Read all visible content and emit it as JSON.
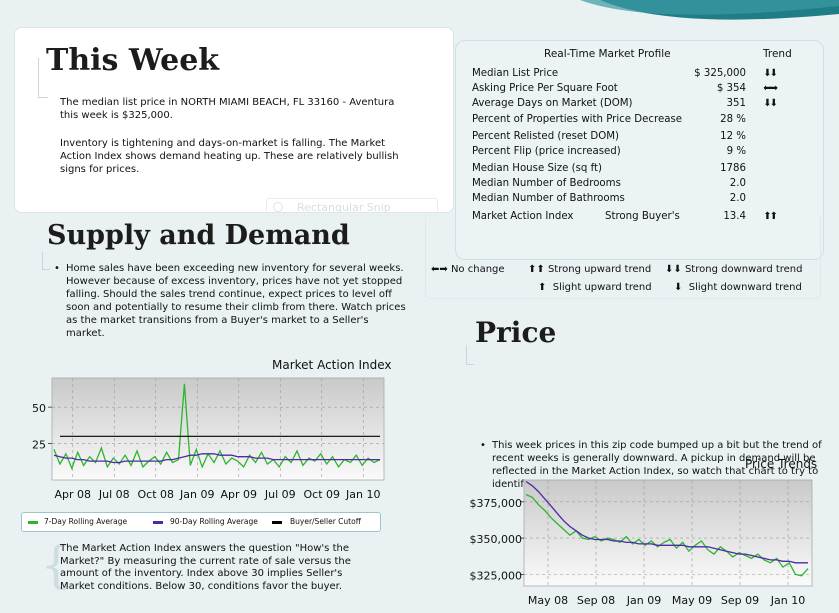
{
  "this_week": {
    "title": "This Week",
    "para1": "The median list price in NORTH MIAMI BEACH, FL 33160 - Aventura this week is $325,000.",
    "para2": "Inventory is tightening and days-on-market is falling. The Market Action Index shows demand heating up. These are relatively bullish signs for prices."
  },
  "snip_text": "Rectangular Snip",
  "supply": {
    "title": "Supply and Demand",
    "text": "Home sales have been exceeding new inventory for several weeks. However because of excess inventory, prices have not yet stopped falling. Should the sales trend continue, expect prices to level off soon and potentially to resume their climb from there. Watch prices as the market transitions from a Buyer's market to a Seller's market."
  },
  "profile": {
    "title": "Real-Time Market Profile",
    "trend_header": "Trend",
    "rows": [
      {
        "label": "Median List Price",
        "mid": "",
        "value": "$ 325,000",
        "trend": "⬇⬇"
      },
      {
        "label": "Asking Price Per Square Foot",
        "mid": "",
        "value": "$ 354",
        "trend": "⬅➡"
      },
      {
        "label": "Average Days on Market (DOM)",
        "mid": "",
        "value": "351",
        "trend": "⬇⬇"
      },
      {
        "label": "Percent of Properties with Price Decrease",
        "mid": "",
        "value": "28 %",
        "trend": ""
      },
      {
        "label": "Percent Relisted (reset DOM)",
        "mid": "",
        "value": "12 %",
        "trend": ""
      },
      {
        "label": "Percent Flip (price increased)",
        "mid": "",
        "value": "9 %",
        "trend": ""
      },
      {
        "label": "Median House Size (sq ft)",
        "mid": "",
        "value": "1786",
        "trend": ""
      },
      {
        "label": "Median Number of Bedrooms",
        "mid": "",
        "value": "2.0",
        "trend": ""
      },
      {
        "label": "Median Number of Bathrooms",
        "mid": "",
        "value": "2.0",
        "trend": ""
      },
      {
        "label": "Market Action Index",
        "mid": "Strong Buyer's",
        "value": "13.4",
        "trend": "⬆⬆"
      }
    ]
  },
  "trend_legend": {
    "no_change": "No change",
    "strong_up": "Strong upward trend",
    "strong_down": "Strong downward trend",
    "slight_up": "Slight upward trend",
    "slight_down": "Slight downward trend"
  },
  "price": {
    "title": "Price",
    "text": "This week prices in this zip code bumped up a bit but the trend of recent weeks is generally downward. A pickup in demand will be reflected in the Market Action Index, so watch that chart to try to identify a trough in the market."
  },
  "mai_note": "The Market Action Index answers the question \"How's the Market?\" By measuring the current rate of sale versus the amount of the inventory.  Index above 30 implies Seller's Market conditions. Below 30, conditions favor the buyer.",
  "colors": {
    "green": "#2db52d",
    "purple": "#4b2aa8",
    "black": "#000000"
  },
  "chart_data": [
    {
      "type": "line",
      "title": "Market Action Index",
      "x_ticks": [
        "Apr 08",
        "Jul 08",
        "Oct 08",
        "Jan 09",
        "Apr 09",
        "Jul 09",
        "Oct 09",
        "Jan 10"
      ],
      "y_ticks": [
        "25",
        "50"
      ],
      "ylim": [
        0,
        70
      ],
      "legend": [
        "7-Day Rolling Average",
        "90-Day Rolling Average",
        "Buyer/Seller Cutoff"
      ],
      "series": [
        {
          "name": "7-Day Rolling Average",
          "color": "#2db52d",
          "values": [
            21,
            11,
            18,
            8,
            19,
            10,
            16,
            12,
            22,
            9,
            15,
            11,
            17,
            10,
            20,
            9,
            13,
            16,
            11,
            19,
            12,
            14,
            66,
            10,
            21,
            9,
            18,
            12,
            20,
            11,
            15,
            13,
            9,
            17,
            12,
            19,
            11,
            14,
            9,
            16,
            12,
            20,
            10,
            15,
            13,
            18,
            11,
            16,
            9,
            14,
            12,
            17,
            10,
            15,
            12,
            14
          ]
        },
        {
          "name": "90-Day Rolling Average",
          "color": "#4b2aa8",
          "values": [
            17,
            16,
            15,
            15,
            14,
            14,
            13,
            13,
            13,
            13,
            12,
            12,
            13,
            13,
            13,
            13,
            13,
            13,
            13,
            14,
            14,
            15,
            16,
            17,
            17,
            18,
            18,
            18,
            17,
            17,
            17,
            16,
            16,
            16,
            15,
            15,
            15,
            14,
            14,
            14,
            14,
            14,
            14,
            14,
            14,
            14,
            14,
            14,
            14,
            14,
            14,
            14,
            14,
            14,
            14,
            14
          ]
        },
        {
          "name": "Buyer/Seller Cutoff",
          "color": "#000000",
          "values": [
            30,
            30
          ]
        }
      ]
    },
    {
      "type": "line",
      "title": "Price Trends",
      "x_ticks": [
        "May 08",
        "Sep 08",
        "Jan 09",
        "May 09",
        "Sep 09",
        "Jan 10"
      ],
      "y_ticks": [
        "$325,000",
        "$350,000",
        "$375,000"
      ],
      "ylim": [
        317000,
        390000
      ],
      "series": [
        {
          "name": "7-Day",
          "color": "#2db52d",
          "values": [
            380000,
            378000,
            373000,
            369000,
            364000,
            360000,
            356000,
            352000,
            355000,
            350000,
            349000,
            351000,
            348000,
            350000,
            349000,
            347000,
            351000,
            346000,
            349000,
            345000,
            348000,
            344000,
            347000,
            349000,
            343000,
            347000,
            341000,
            345000,
            348000,
            342000,
            339000,
            344000,
            341000,
            337000,
            340000,
            338000,
            336000,
            339000,
            335000,
            333000,
            336000,
            330000,
            333000,
            325000,
            324000,
            329000
          ]
        },
        {
          "name": "90-Day",
          "color": "#4b2aa8",
          "values": [
            389000,
            386000,
            382000,
            377000,
            372000,
            367000,
            362000,
            358000,
            355000,
            352000,
            350000,
            349000,
            349000,
            349000,
            348000,
            348000,
            347000,
            347000,
            346000,
            346000,
            346000,
            345000,
            345000,
            345000,
            345000,
            345000,
            344000,
            344000,
            344000,
            344000,
            343000,
            342000,
            341000,
            340000,
            339000,
            339000,
            338000,
            337000,
            336000,
            335000,
            335000,
            334000,
            334000,
            333000,
            333000,
            333000
          ]
        }
      ]
    }
  ]
}
